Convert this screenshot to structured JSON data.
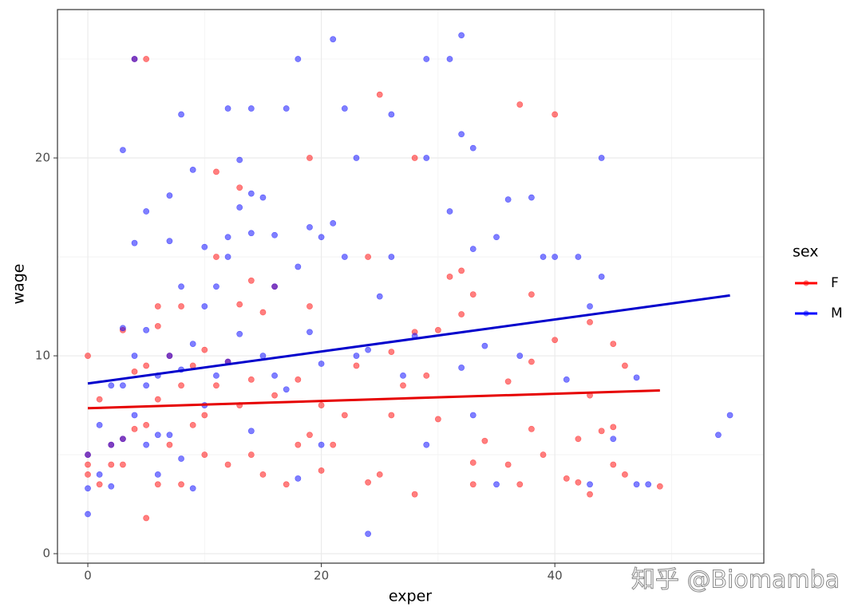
{
  "chart_data": {
    "type": "scatter",
    "x_label": "exper",
    "y_label": "wage",
    "legend_title": "sex",
    "watermark": "知乎 @Biomamba",
    "xlim": [
      -2.6,
      57.9
    ],
    "ylim": [
      -0.48,
      27.5
    ],
    "xticks": [
      0,
      20,
      40
    ],
    "yticks": [
      0,
      10,
      20
    ],
    "xminor": [
      10,
      30,
      50
    ],
    "yminor": [
      5,
      15,
      25
    ],
    "grid": true,
    "legend": "right",
    "series": [
      {
        "name": "F",
        "color": "#ff0000",
        "x": [
          0,
          0,
          0,
          0,
          1,
          1,
          2,
          2,
          3,
          3,
          3,
          4,
          4,
          4,
          5,
          5,
          5,
          5,
          6,
          6,
          6,
          6,
          7,
          7,
          8,
          8,
          8,
          9,
          9,
          10,
          10,
          10,
          11,
          11,
          11,
          12,
          12,
          13,
          13,
          13,
          14,
          14,
          14,
          15,
          15,
          16,
          16,
          17,
          18,
          18,
          19,
          19,
          19,
          20,
          20,
          21,
          22,
          23,
          24,
          24,
          25,
          25,
          26,
          26,
          27,
          28,
          28,
          28,
          29,
          30,
          30,
          31,
          32,
          32,
          33,
          33,
          33,
          34,
          36,
          36,
          37,
          37,
          38,
          38,
          38,
          39,
          40,
          40,
          41,
          42,
          42,
          43,
          43,
          43,
          44,
          45,
          45,
          45,
          46,
          46,
          49
        ],
        "values": [
          10,
          4.5,
          4,
          5,
          7.8,
          3.5,
          5.5,
          4.5,
          11.3,
          4.5,
          5.8,
          9.2,
          6.3,
          25,
          25,
          9.5,
          1.8,
          6.5,
          12.5,
          11.5,
          7.8,
          3.5,
          10,
          5.5,
          8.5,
          12.5,
          3.5,
          9.5,
          6.5,
          10.3,
          7,
          5,
          19.3,
          15,
          8.5,
          9.7,
          4.5,
          18.5,
          12.6,
          7.5,
          13.8,
          5,
          8.8,
          12.2,
          4,
          13.5,
          8,
          3.5,
          8.8,
          5.5,
          20,
          12.5,
          6,
          4.2,
          7.5,
          5.5,
          7,
          9.5,
          15,
          3.6,
          23.2,
          4,
          10.2,
          7,
          8.5,
          20,
          3,
          11.2,
          9,
          11.3,
          6.8,
          14,
          14.3,
          12.1,
          13.1,
          4.6,
          3.5,
          5.7,
          8.7,
          4.5,
          22.7,
          3.5,
          13.1,
          9.7,
          6.3,
          5,
          22.2,
          10.8,
          3.8,
          5.8,
          3.6,
          11.7,
          3,
          8,
          6.2,
          10.6,
          6.4,
          4.5,
          9.5,
          4,
          3.4
        ],
        "fit": {
          "x": [
            0,
            49
          ],
          "values": [
            7.35,
            8.25
          ]
        }
      },
      {
        "name": "M",
        "color": "#0000ff",
        "x": [
          0,
          0,
          0,
          1,
          1,
          2,
          2,
          2,
          3,
          3,
          3,
          3,
          4,
          4,
          4,
          4,
          5,
          5,
          5,
          5,
          6,
          6,
          6,
          7,
          7,
          7,
          7,
          8,
          8,
          8,
          8,
          9,
          9,
          9,
          10,
          10,
          10,
          11,
          11,
          12,
          12,
          12,
          12,
          13,
          13,
          13,
          14,
          14,
          14,
          14,
          15,
          15,
          16,
          16,
          16,
          17,
          17,
          18,
          18,
          18,
          19,
          19,
          20,
          20,
          20,
          21,
          21,
          22,
          22,
          23,
          23,
          24,
          24,
          25,
          26,
          26,
          27,
          28,
          29,
          29,
          29,
          31,
          31,
          32,
          32,
          32,
          33,
          33,
          33,
          34,
          35,
          35,
          36,
          37,
          38,
          39,
          40,
          41,
          42,
          43,
          43,
          44,
          44,
          45,
          47,
          47,
          48,
          54,
          55
        ],
        "values": [
          5,
          3.3,
          2,
          6.5,
          4,
          8.5,
          5.5,
          3.4,
          20.4,
          11.4,
          8.5,
          5.8,
          25,
          15.7,
          10,
          7,
          17.3,
          11.3,
          8.5,
          5.5,
          9,
          6,
          4,
          18.1,
          15.8,
          10,
          6,
          22.2,
          13.5,
          9.3,
          4.8,
          19.4,
          10.6,
          3.3,
          15.5,
          12.5,
          7.5,
          13.5,
          9,
          22.5,
          16,
          15,
          9.7,
          19.9,
          17.5,
          11.1,
          22.5,
          18.2,
          16.2,
          6.2,
          18,
          10,
          16.1,
          13.5,
          9,
          22.5,
          8.3,
          25,
          14.5,
          3.8,
          16.5,
          11.2,
          16,
          9.6,
          5.5,
          26,
          16.7,
          22.5,
          15,
          20,
          10,
          10.3,
          1,
          13,
          22.2,
          15,
          9,
          11,
          25,
          20,
          5.5,
          25,
          17.3,
          26.2,
          21.2,
          9.4,
          20.5,
          15.4,
          7,
          10.5,
          16,
          3.5,
          17.9,
          10,
          18,
          15,
          15,
          8.8,
          15,
          12.5,
          3.5,
          20,
          14,
          5.8,
          8.9,
          3.5,
          3.5,
          6,
          7
        ],
        "fit": {
          "x": [
            0,
            55
          ],
          "values": [
            8.6,
            13.05
          ]
        }
      }
    ]
  }
}
